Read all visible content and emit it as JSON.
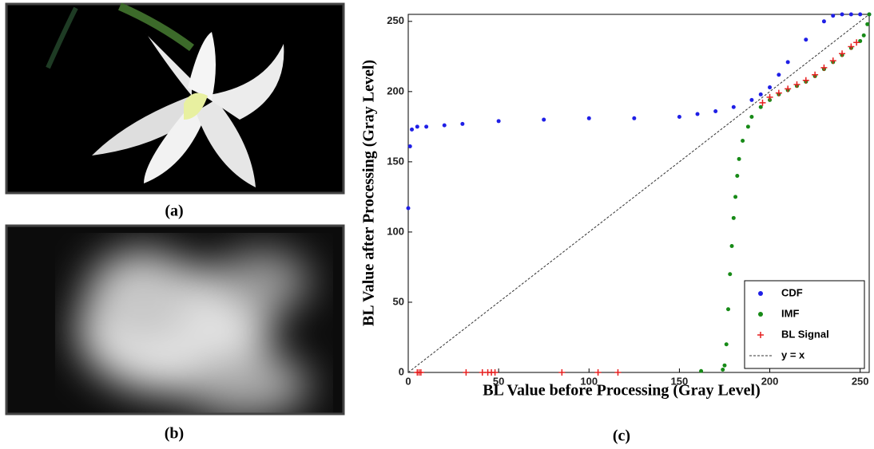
{
  "panels": [
    {
      "caption": "(a)"
    },
    {
      "caption": "(b)"
    }
  ],
  "chart_data": {
    "type": "scatter",
    "caption": "(c)",
    "xlabel": "BL Value before Processing (Gray Level)",
    "ylabel": "BL Value after Processing (Gray Level)",
    "xlim": [
      0,
      255
    ],
    "ylim": [
      0,
      255
    ],
    "xticks": [
      0,
      50,
      100,
      150,
      200,
      250
    ],
    "yticks": [
      0,
      50,
      100,
      150,
      200,
      250
    ],
    "legend": "lower right",
    "series": [
      {
        "name": "CDF",
        "color": "#1f1fe6",
        "marker": "dot",
        "x": [
          0,
          1,
          2,
          5,
          10,
          20,
          30,
          50,
          75,
          100,
          125,
          150,
          160,
          170,
          180,
          190,
          195,
          200,
          205,
          210,
          220,
          230,
          235,
          240,
          245,
          250,
          255
        ],
        "values": [
          117,
          161,
          173,
          175,
          175,
          176,
          177,
          179,
          180,
          181,
          181,
          182,
          184,
          186,
          189,
          194,
          198,
          203,
          212,
          221,
          237,
          250,
          254,
          255,
          255,
          255,
          255
        ]
      },
      {
        "name": "IMF",
        "color": "#178a17",
        "marker": "dot",
        "x": [
          162,
          174,
          175,
          176,
          177,
          178,
          179,
          180,
          181,
          182,
          183,
          185,
          188,
          190,
          195,
          200,
          205,
          210,
          215,
          220,
          225,
          230,
          235,
          240,
          245,
          250,
          252,
          254,
          255
        ],
        "values": [
          1,
          2,
          5,
          20,
          45,
          70,
          90,
          110,
          125,
          140,
          152,
          165,
          175,
          182,
          189,
          194,
          198,
          201,
          204,
          207,
          211,
          216,
          221,
          226,
          231,
          236,
          240,
          248,
          255
        ]
      },
      {
        "name": "BL Signal",
        "color": "#e62020",
        "marker": "plus",
        "x": [
          5,
          6,
          7,
          32,
          41,
          44,
          46,
          48,
          85,
          105,
          116,
          196,
          200,
          205,
          210,
          215,
          220,
          225,
          230,
          235,
          240,
          245,
          248
        ],
        "values": [
          0,
          0,
          0,
          0,
          0,
          0,
          0,
          0,
          0,
          0,
          0,
          192,
          196,
          199,
          202,
          205,
          208,
          212,
          217,
          222,
          227,
          232,
          235
        ]
      },
      {
        "name": "y = x",
        "color": "#333333",
        "marker": "dashed",
        "x": [
          0,
          255
        ],
        "values": [
          0,
          255
        ]
      }
    ]
  }
}
